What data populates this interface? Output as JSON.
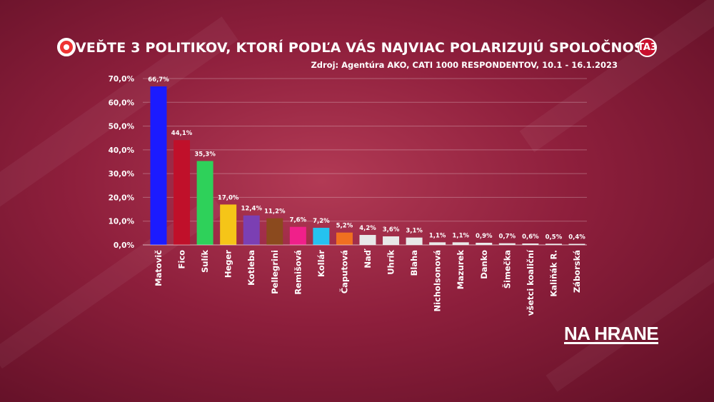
{
  "header": {
    "title": "VEĎTE 3 POLITIKOV, KTORÍ PODĽA VÁS NAJVIAC POLARIZUJÚ SPOLOČNOSŤ",
    "source": "Zdroj: Agentúra AKO, CATI 1000 RESPONDENTOV, 10.1 - 16.1.2023",
    "channel_logo": "TA3"
  },
  "brand": {
    "name": "NA HRANE"
  },
  "chart_data": {
    "type": "bar",
    "title": "VEĎTE 3 POLITIKOV, KTORÍ PODĽA VÁS NAJVIAC POLARIZUJÚ SPOLOČNOSŤ",
    "ylim": [
      0,
      70
    ],
    "yticks": [
      "0,0%",
      "10,0%",
      "20,0%",
      "30,0%",
      "40,0%",
      "50,0%",
      "60,0%",
      "70,0%"
    ],
    "grid": true,
    "categories": [
      "Matovič",
      "Fico",
      "Sulík",
      "Heger",
      "Kotleba",
      "Pellegrini",
      "Remišová",
      "Kollár",
      "Čaputová",
      "Naď",
      "Uhrík",
      "Blaha",
      "Nicholsonová",
      "Mazurek",
      "Danko",
      "Šimečka",
      "všetci koaliční",
      "Kaliňák R.",
      "Záborská"
    ],
    "values": [
      66.7,
      44.1,
      35.3,
      17.0,
      12.4,
      11.2,
      7.6,
      7.2,
      5.2,
      4.2,
      3.6,
      3.1,
      1.1,
      1.1,
      0.9,
      0.7,
      0.6,
      0.5,
      0.4
    ],
    "labels": [
      "66,7%",
      "44,1%",
      "35,3%",
      "17,0%",
      "12,4%",
      "11,2%",
      "7,6%",
      "7,2%",
      "5,2%",
      "4,2%",
      "3,6%",
      "3,1%",
      "1,1%",
      "1,1%",
      "0,9%",
      "0,7%",
      "0,6%",
      "0,5%",
      "0,4%"
    ],
    "colors": [
      "#1b1bff",
      "#c0102a",
      "#2ed15a",
      "#f5c518",
      "#7b3fb3",
      "#8b4a1e",
      "#f0208a",
      "#25c2f0",
      "#f07020",
      "#e8e8e8",
      "#e8e8e8",
      "#e8e8e8",
      "#e8e8e8",
      "#e8e8e8",
      "#e8e8e8",
      "#e8e8e8",
      "#e8e8e8",
      "#e8e8e8",
      "#e8e8e8"
    ]
  }
}
